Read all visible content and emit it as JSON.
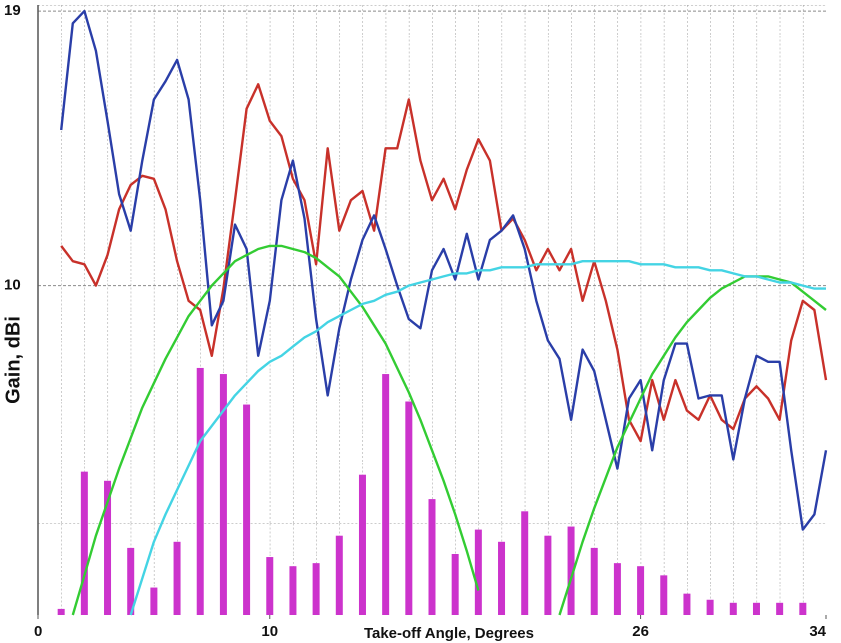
{
  "chart_data": {
    "type": "line",
    "y_label": "Gain, dBi",
    "x_label": "Take-off Angle, Degrees",
    "xlim": [
      0,
      34
    ],
    "xticks": [
      0,
      10,
      26,
      34
    ],
    "ylim": [
      -0.8,
      19.2
    ],
    "yticks": [
      19,
      10
    ],
    "y2lim": [
      0,
      20
    ],
    "grid": true,
    "x": [
      1.0,
      1.5,
      2.0,
      2.5,
      3.0,
      3.5,
      4.0,
      4.5,
      5.0,
      5.5,
      6.0,
      6.5,
      7.0,
      7.5,
      8.0,
      8.5,
      9.0,
      9.5,
      10.0,
      10.5,
      11.0,
      11.5,
      12.0,
      12.5,
      13.0,
      13.5,
      14.0,
      14.5,
      15.0,
      15.5,
      16.0,
      16.5,
      17.0,
      17.5,
      18.0,
      18.5,
      19.0,
      19.5,
      20.0,
      20.5,
      21.0,
      21.5,
      22.0,
      22.5,
      23.0,
      23.5,
      24.0,
      24.5,
      25.0,
      25.5,
      26.0,
      26.5,
      27.0,
      27.5,
      28.0,
      28.5,
      29.0,
      29.5,
      30.0,
      30.5,
      31.0,
      31.5,
      32.0,
      32.5,
      33.0,
      33.5,
      34.0
    ],
    "series": [
      {
        "color": "#c8312a",
        "values": [
          11.3,
          10.8,
          10.7,
          10.0,
          11.0,
          12.5,
          13.3,
          13.6,
          13.5,
          12.5,
          10.8,
          9.5,
          9.2,
          7.7,
          9.9,
          12.8,
          15.8,
          16.6,
          15.4,
          14.9,
          13.5,
          12.8,
          10.7,
          14.5,
          11.8,
          12.8,
          13.1,
          11.8,
          14.5,
          14.5,
          16.1,
          14.1,
          12.8,
          13.5,
          12.5,
          13.8,
          14.8,
          14.1,
          11.8,
          12.2,
          11.5,
          10.5,
          11.2,
          10.5,
          11.2,
          9.5,
          10.8,
          9.5,
          7.9,
          5.6,
          4.9,
          6.9,
          5.6,
          6.9,
          5.9,
          5.6,
          6.4,
          5.6,
          5.3,
          6.3,
          6.7,
          6.3,
          5.6,
          8.2,
          9.5,
          9.2,
          6.9
        ]
      },
      {
        "color": "#2a3ea8",
        "values": [
          15.1,
          18.6,
          19.0,
          17.7,
          15.4,
          13.0,
          11.8,
          14.1,
          16.1,
          16.7,
          17.4,
          16.1,
          12.8,
          8.7,
          9.5,
          12.0,
          11.2,
          7.7,
          9.5,
          12.8,
          14.1,
          12.2,
          8.9,
          6.4,
          8.6,
          10.2,
          11.5,
          12.3,
          11.2,
          10.0,
          8.9,
          8.6,
          10.5,
          11.2,
          10.2,
          11.7,
          10.2,
          11.5,
          11.8,
          12.3,
          11.2,
          9.5,
          8.2,
          7.6,
          5.6,
          7.9,
          7.2,
          5.6,
          4.0,
          6.3,
          6.9,
          4.6,
          6.9,
          8.1,
          8.1,
          6.3,
          6.4,
          6.4,
          4.3,
          6.3,
          7.7,
          7.5,
          7.5,
          4.6,
          2.0,
          2.5,
          4.6
        ]
      },
      {
        "color": "#33cc33",
        "values": [
          null,
          -0.8,
          0.5,
          1.8,
          2.9,
          4.0,
          5.0,
          6.0,
          6.8,
          7.6,
          8.3,
          9.0,
          9.5,
          10.0,
          10.4,
          10.8,
          11.0,
          11.2,
          11.3,
          11.3,
          11.2,
          11.1,
          10.9,
          10.6,
          10.3,
          9.8,
          9.3,
          8.7,
          8.1,
          7.3,
          6.5,
          5.6,
          4.6,
          3.6,
          2.5,
          1.3,
          0.0,
          null,
          null,
          null,
          null,
          null,
          null,
          null,
          null,
          null,
          null,
          null,
          null,
          null,
          null,
          null,
          null,
          null,
          null,
          null,
          null,
          null,
          null,
          null,
          null,
          null,
          null,
          null,
          null,
          null,
          null
        ]
      },
      {
        "color": "#33cc33",
        "values": [
          null,
          null,
          null,
          null,
          null,
          null,
          null,
          null,
          null,
          null,
          null,
          null,
          null,
          null,
          null,
          null,
          null,
          null,
          null,
          null,
          null,
          null,
          null,
          null,
          null,
          null,
          null,
          null,
          null,
          null,
          null,
          null,
          null,
          null,
          null,
          null,
          null,
          null,
          null,
          null,
          null,
          null,
          null,
          -0.8,
          0.4,
          1.6,
          2.7,
          3.7,
          4.7,
          5.5,
          6.3,
          7.1,
          7.7,
          8.3,
          8.8,
          9.2,
          9.6,
          9.9,
          10.1,
          10.3,
          10.3,
          10.3,
          10.2,
          10.1,
          9.8,
          9.5,
          9.2
        ]
      },
      {
        "color": "#44d4e4",
        "values": [
          null,
          null,
          null,
          null,
          null,
          null,
          -0.8,
          0.4,
          1.6,
          2.5,
          3.3,
          4.1,
          4.9,
          5.4,
          5.9,
          6.4,
          6.8,
          7.2,
          7.5,
          7.7,
          8.0,
          8.3,
          8.5,
          8.8,
          9.0,
          9.2,
          9.4,
          9.5,
          9.7,
          9.8,
          10.0,
          10.1,
          10.2,
          10.3,
          10.4,
          10.4,
          10.5,
          10.5,
          10.6,
          10.6,
          10.6,
          10.7,
          10.7,
          10.7,
          10.7,
          10.8,
          10.8,
          10.8,
          10.8,
          10.8,
          10.7,
          10.7,
          10.7,
          10.6,
          10.6,
          10.6,
          10.5,
          10.5,
          10.4,
          10.3,
          10.3,
          10.2,
          10.1,
          10.1,
          10.0,
          9.9,
          9.9
        ]
      }
    ],
    "bars": {
      "type": "bar",
      "axis": "y2",
      "color": "#cc33cc",
      "x": [
        1,
        2,
        3,
        4,
        5,
        6,
        7,
        8,
        9,
        10,
        11,
        12,
        13,
        14,
        15,
        16,
        17,
        18,
        19,
        20,
        21,
        22,
        23,
        24,
        25,
        26,
        27,
        28,
        29,
        30,
        31,
        32,
        33
      ],
      "values": [
        0.2,
        4.7,
        4.4,
        2.2,
        0.9,
        2.4,
        8.1,
        7.9,
        6.9,
        1.9,
        1.6,
        1.7,
        2.6,
        4.6,
        7.9,
        7.0,
        3.8,
        2.0,
        2.8,
        2.4,
        3.4,
        2.6,
        2.9,
        2.2,
        1.7,
        1.6,
        1.3,
        0.7,
        0.5,
        0.4,
        0.4,
        0.4,
        0.4
      ]
    }
  }
}
